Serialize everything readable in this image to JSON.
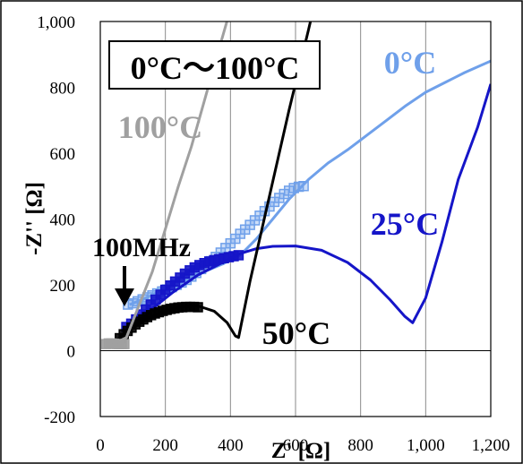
{
  "chart_data": {
    "type": "scatter",
    "title": "",
    "xlabel": "Z' [Ω]",
    "ylabel": "-Z'' [Ω]",
    "xlim": [
      0,
      1200
    ],
    "ylim": [
      -200,
      1000
    ],
    "grid": "vertical",
    "x_ticks": [
      0,
      200,
      400,
      600,
      800,
      1000,
      1200
    ],
    "x_tick_labels": [
      "0",
      "200",
      "400",
      "600",
      "800",
      "1,000",
      "1,200"
    ],
    "y_ticks": [
      -200,
      0,
      200,
      400,
      600,
      800,
      1000
    ],
    "y_tick_labels": [
      "-200",
      "0",
      "200",
      "400",
      "600",
      "800",
      "1,000"
    ],
    "range_label": "0°C～100°C",
    "frequency_label": "100MHz",
    "series": [
      {
        "name": "0°C",
        "color": "#6fa0ea",
        "line": [
          [
            90,
            140
          ],
          [
            140,
            160
          ],
          [
            200,
            190
          ],
          [
            260,
            215
          ],
          [
            320,
            240
          ],
          [
            380,
            265
          ],
          [
            430,
            290
          ],
          [
            480,
            340
          ],
          [
            530,
            400
          ],
          [
            580,
            460
          ],
          [
            640,
            520
          ],
          [
            700,
            570
          ],
          [
            760,
            610
          ],
          [
            820,
            655
          ],
          [
            880,
            700
          ],
          [
            940,
            745
          ],
          [
            1000,
            785
          ],
          [
            1060,
            815
          ],
          [
            1120,
            845
          ],
          [
            1200,
            880
          ]
        ],
        "markers": [
          [
            85,
            140
          ],
          [
            100,
            144
          ],
          [
            115,
            150
          ],
          [
            130,
            156
          ],
          [
            145,
            162
          ],
          [
            160,
            168
          ],
          [
            175,
            174
          ],
          [
            190,
            180
          ],
          [
            205,
            186
          ],
          [
            220,
            193
          ],
          [
            235,
            200
          ],
          [
            250,
            207
          ],
          [
            265,
            215
          ],
          [
            280,
            225
          ],
          [
            295,
            236
          ],
          [
            310,
            248
          ],
          [
            325,
            260
          ],
          [
            340,
            272
          ],
          [
            355,
            285
          ],
          [
            370,
            298
          ],
          [
            385,
            312
          ],
          [
            400,
            326
          ],
          [
            415,
            340
          ],
          [
            430,
            355
          ],
          [
            445,
            368
          ],
          [
            460,
            382
          ],
          [
            475,
            396
          ],
          [
            490,
            410
          ],
          [
            505,
            424
          ],
          [
            520,
            438
          ],
          [
            535,
            452
          ],
          [
            550,
            464
          ],
          [
            565,
            476
          ],
          [
            580,
            486
          ],
          [
            595,
            494
          ],
          [
            610,
            498
          ],
          [
            625,
            500
          ]
        ]
      },
      {
        "name": "25°C",
        "color": "#1515c8",
        "line": [
          [
            80,
            75
          ],
          [
            150,
            120
          ],
          [
            220,
            175
          ],
          [
            300,
            230
          ],
          [
            380,
            270
          ],
          [
            430,
            295
          ],
          [
            480,
            310
          ],
          [
            530,
            317
          ],
          [
            600,
            318
          ],
          [
            680,
            305
          ],
          [
            760,
            268
          ],
          [
            830,
            215
          ],
          [
            890,
            155
          ],
          [
            935,
            105
          ],
          [
            960,
            85
          ],
          [
            1000,
            160
          ],
          [
            1050,
            330
          ],
          [
            1100,
            520
          ],
          [
            1160,
            680
          ],
          [
            1200,
            810
          ]
        ],
        "markers": [
          [
            80,
            72
          ],
          [
            95,
            82
          ],
          [
            110,
            95
          ],
          [
            125,
            110
          ],
          [
            140,
            125
          ],
          [
            155,
            140
          ],
          [
            170,
            155
          ],
          [
            185,
            170
          ],
          [
            200,
            185
          ],
          [
            215,
            198
          ],
          [
            230,
            210
          ],
          [
            245,
            222
          ],
          [
            260,
            234
          ],
          [
            275,
            244
          ],
          [
            290,
            253
          ],
          [
            305,
            260
          ],
          [
            320,
            266
          ],
          [
            335,
            271
          ],
          [
            350,
            275
          ],
          [
            365,
            278
          ],
          [
            380,
            281
          ],
          [
            395,
            284
          ],
          [
            410,
            287
          ],
          [
            425,
            290
          ]
        ]
      },
      {
        "name": "50°C",
        "color": "#000000",
        "line": [
          [
            60,
            40
          ],
          [
            120,
            85
          ],
          [
            180,
            115
          ],
          [
            240,
            132
          ],
          [
            300,
            136
          ],
          [
            350,
            120
          ],
          [
            390,
            85
          ],
          [
            415,
            45
          ],
          [
            425,
            40
          ],
          [
            460,
            210
          ],
          [
            520,
            470
          ],
          [
            580,
            730
          ],
          [
            640,
            975
          ],
          [
            660,
            1060
          ]
        ],
        "markers": [
          [
            60,
            38
          ],
          [
            72,
            50
          ],
          [
            84,
            60
          ],
          [
            96,
            70
          ],
          [
            108,
            80
          ],
          [
            120,
            88
          ],
          [
            132,
            95
          ],
          [
            144,
            102
          ],
          [
            156,
            108
          ],
          [
            168,
            113
          ],
          [
            180,
            117
          ],
          [
            192,
            121
          ],
          [
            204,
            124
          ],
          [
            216,
            127
          ],
          [
            228,
            129
          ],
          [
            240,
            131
          ],
          [
            252,
            132
          ],
          [
            264,
            133
          ],
          [
            276,
            133
          ],
          [
            288,
            133
          ],
          [
            300,
            132
          ]
        ]
      },
      {
        "name": "100°C",
        "color": "#a0a0a0",
        "line": [
          [
            40,
            20
          ],
          [
            80,
            40
          ],
          [
            120,
            140
          ],
          [
            160,
            240
          ],
          [
            200,
            370
          ],
          [
            240,
            500
          ],
          [
            280,
            620
          ],
          [
            320,
            760
          ],
          [
            360,
            900
          ],
          [
            395,
            1020
          ]
        ],
        "markers": [
          [
            18,
            20
          ],
          [
            26,
            22
          ],
          [
            34,
            22
          ],
          [
            42,
            21
          ],
          [
            50,
            20
          ],
          [
            58,
            20
          ],
          [
            66,
            20
          ],
          [
            74,
            20
          ]
        ]
      }
    ]
  }
}
